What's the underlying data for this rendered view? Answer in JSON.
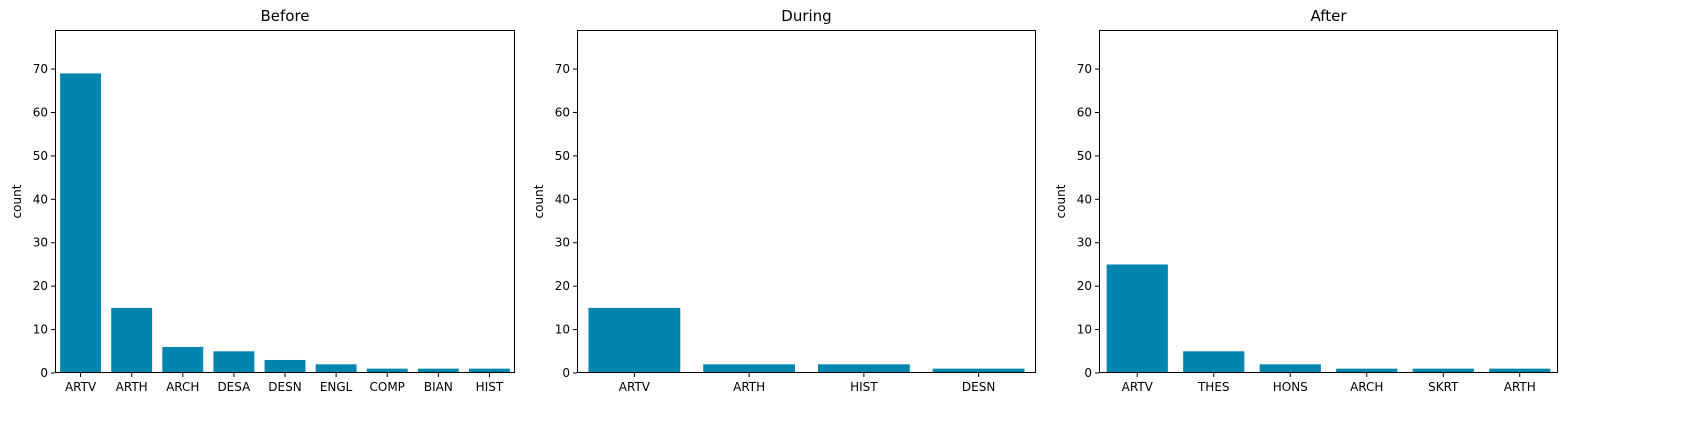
{
  "chart_data": [
    {
      "type": "bar",
      "title": "Before",
      "xlabel": "",
      "ylabel": "count",
      "ylim": [
        0,
        79
      ],
      "yticks": [
        0,
        10,
        20,
        30,
        40,
        50,
        60,
        70
      ],
      "categories": [
        "ARTV",
        "ARTH",
        "ARCH",
        "DESA",
        "DESN",
        "ENGL",
        "COMP",
        "BIAN",
        "HIST"
      ],
      "values": [
        69,
        15,
        6,
        5,
        3,
        2,
        1,
        1,
        1
      ],
      "color": "#0086ae",
      "grid": false
    },
    {
      "type": "bar",
      "title": "During",
      "xlabel": "",
      "ylabel": "count",
      "ylim": [
        0,
        79
      ],
      "yticks": [
        0,
        10,
        20,
        30,
        40,
        50,
        60,
        70
      ],
      "categories": [
        "ARTV",
        "ARTH",
        "HIST",
        "DESN"
      ],
      "values": [
        15,
        2,
        2,
        1
      ],
      "color": "#0086ae",
      "grid": false
    },
    {
      "type": "bar",
      "title": "After",
      "xlabel": "",
      "ylabel": "count",
      "ylim": [
        0,
        79
      ],
      "yticks": [
        0,
        10,
        20,
        30,
        40,
        50,
        60,
        70
      ],
      "categories": [
        "ARTV",
        "THES",
        "HONS",
        "ARCH",
        "SKRT",
        "ARTH"
      ],
      "values": [
        25,
        5,
        2,
        1,
        1,
        1
      ],
      "color": "#0086ae",
      "grid": false
    }
  ]
}
